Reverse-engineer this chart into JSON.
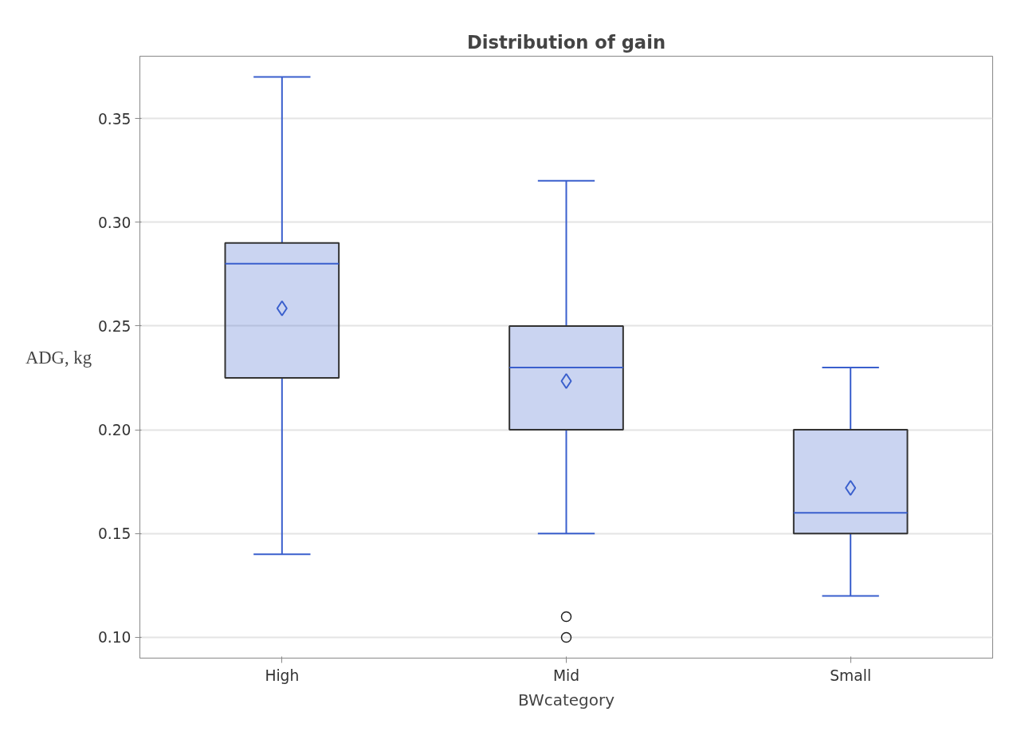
{
  "chart_data": {
    "type": "box",
    "title": "Distribution of gain",
    "xlabel": "BWcategory",
    "ylabel": "ADG, kg",
    "categories": [
      "High",
      "Mid",
      "Small"
    ],
    "series": [
      {
        "color": "#3a5fcd",
        "boxes": [
          {
            "low": 0.14,
            "q1": 0.225,
            "median": 0.28,
            "q3": 0.29,
            "high": 0.37,
            "mean": 0.2585
          },
          {
            "low": 0.15,
            "q1": 0.2,
            "median": 0.23,
            "q3": 0.25,
            "high": 0.32,
            "mean": 0.2235,
            "outliers": [
              0.11,
              0.1
            ]
          },
          {
            "low": 0.12,
            "q1": 0.15,
            "median": 0.16,
            "q3": 0.2,
            "high": 0.23,
            "mean": 0.172
          }
        ]
      }
    ],
    "ylim": [
      0.09,
      0.38
    ],
    "yticks": [
      {
        "value": 0.1,
        "label": "0.10"
      },
      0.15,
      {
        "value": 0.2,
        "label": "0.20"
      },
      0.25,
      {
        "value": 0.3,
        "label": "0.30"
      },
      0.35
    ],
    "grid": "y",
    "marker": "diamond"
  }
}
